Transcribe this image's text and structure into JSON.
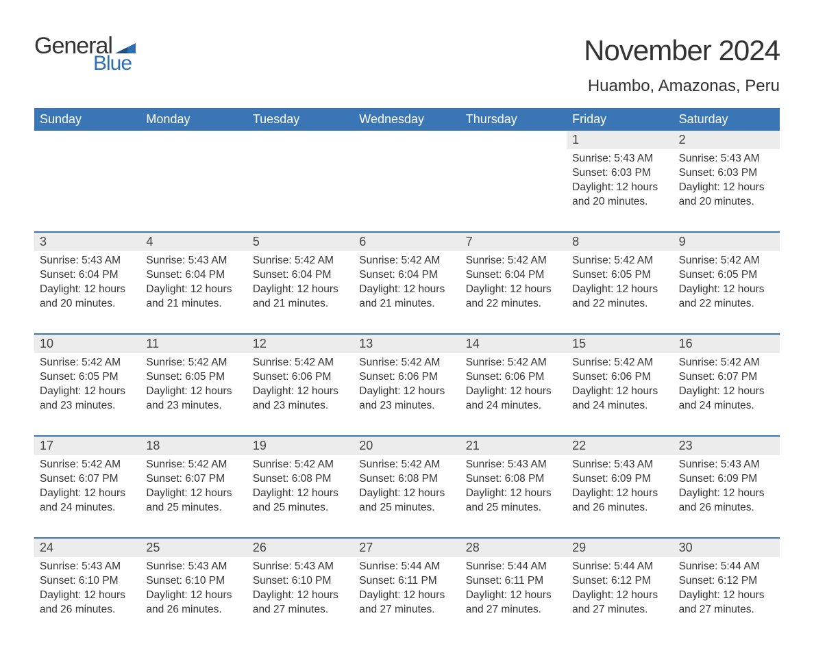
{
  "brand": {
    "part1": "General",
    "part2": "Blue",
    "flag_color": "#2e6fb3",
    "text_color_dark": "#333333"
  },
  "title": "November 2024",
  "location": "Huambo, Amazonas, Peru",
  "colors": {
    "header_bg": "#3a75b5",
    "header_fg": "#ffffff",
    "daynum_bg": "#ececec",
    "rule": "#3a75b5",
    "body_bg": "#ffffff",
    "text": "#333333"
  },
  "weekdays": [
    "Sunday",
    "Monday",
    "Tuesday",
    "Wednesday",
    "Thursday",
    "Friday",
    "Saturday"
  ],
  "weeks": [
    [
      null,
      null,
      null,
      null,
      null,
      {
        "n": "1",
        "sunrise": "5:43 AM",
        "sunset": "6:03 PM",
        "daylight": "12 hours and 20 minutes."
      },
      {
        "n": "2",
        "sunrise": "5:43 AM",
        "sunset": "6:03 PM",
        "daylight": "12 hours and 20 minutes."
      }
    ],
    [
      {
        "n": "3",
        "sunrise": "5:43 AM",
        "sunset": "6:04 PM",
        "daylight": "12 hours and 20 minutes."
      },
      {
        "n": "4",
        "sunrise": "5:43 AM",
        "sunset": "6:04 PM",
        "daylight": "12 hours and 21 minutes."
      },
      {
        "n": "5",
        "sunrise": "5:42 AM",
        "sunset": "6:04 PM",
        "daylight": "12 hours and 21 minutes."
      },
      {
        "n": "6",
        "sunrise": "5:42 AM",
        "sunset": "6:04 PM",
        "daylight": "12 hours and 21 minutes."
      },
      {
        "n": "7",
        "sunrise": "5:42 AM",
        "sunset": "6:04 PM",
        "daylight": "12 hours and 22 minutes."
      },
      {
        "n": "8",
        "sunrise": "5:42 AM",
        "sunset": "6:05 PM",
        "daylight": "12 hours and 22 minutes."
      },
      {
        "n": "9",
        "sunrise": "5:42 AM",
        "sunset": "6:05 PM",
        "daylight": "12 hours and 22 minutes."
      }
    ],
    [
      {
        "n": "10",
        "sunrise": "5:42 AM",
        "sunset": "6:05 PM",
        "daylight": "12 hours and 23 minutes."
      },
      {
        "n": "11",
        "sunrise": "5:42 AM",
        "sunset": "6:05 PM",
        "daylight": "12 hours and 23 minutes."
      },
      {
        "n": "12",
        "sunrise": "5:42 AM",
        "sunset": "6:06 PM",
        "daylight": "12 hours and 23 minutes."
      },
      {
        "n": "13",
        "sunrise": "5:42 AM",
        "sunset": "6:06 PM",
        "daylight": "12 hours and 23 minutes."
      },
      {
        "n": "14",
        "sunrise": "5:42 AM",
        "sunset": "6:06 PM",
        "daylight": "12 hours and 24 minutes."
      },
      {
        "n": "15",
        "sunrise": "5:42 AM",
        "sunset": "6:06 PM",
        "daylight": "12 hours and 24 minutes."
      },
      {
        "n": "16",
        "sunrise": "5:42 AM",
        "sunset": "6:07 PM",
        "daylight": "12 hours and 24 minutes."
      }
    ],
    [
      {
        "n": "17",
        "sunrise": "5:42 AM",
        "sunset": "6:07 PM",
        "daylight": "12 hours and 24 minutes."
      },
      {
        "n": "18",
        "sunrise": "5:42 AM",
        "sunset": "6:07 PM",
        "daylight": "12 hours and 25 minutes."
      },
      {
        "n": "19",
        "sunrise": "5:42 AM",
        "sunset": "6:08 PM",
        "daylight": "12 hours and 25 minutes."
      },
      {
        "n": "20",
        "sunrise": "5:42 AM",
        "sunset": "6:08 PM",
        "daylight": "12 hours and 25 minutes."
      },
      {
        "n": "21",
        "sunrise": "5:43 AM",
        "sunset": "6:08 PM",
        "daylight": "12 hours and 25 minutes."
      },
      {
        "n": "22",
        "sunrise": "5:43 AM",
        "sunset": "6:09 PM",
        "daylight": "12 hours and 26 minutes."
      },
      {
        "n": "23",
        "sunrise": "5:43 AM",
        "sunset": "6:09 PM",
        "daylight": "12 hours and 26 minutes."
      }
    ],
    [
      {
        "n": "24",
        "sunrise": "5:43 AM",
        "sunset": "6:10 PM",
        "daylight": "12 hours and 26 minutes."
      },
      {
        "n": "25",
        "sunrise": "5:43 AM",
        "sunset": "6:10 PM",
        "daylight": "12 hours and 26 minutes."
      },
      {
        "n": "26",
        "sunrise": "5:43 AM",
        "sunset": "6:10 PM",
        "daylight": "12 hours and 27 minutes."
      },
      {
        "n": "27",
        "sunrise": "5:44 AM",
        "sunset": "6:11 PM",
        "daylight": "12 hours and 27 minutes."
      },
      {
        "n": "28",
        "sunrise": "5:44 AM",
        "sunset": "6:11 PM",
        "daylight": "12 hours and 27 minutes."
      },
      {
        "n": "29",
        "sunrise": "5:44 AM",
        "sunset": "6:12 PM",
        "daylight": "12 hours and 27 minutes."
      },
      {
        "n": "30",
        "sunrise": "5:44 AM",
        "sunset": "6:12 PM",
        "daylight": "12 hours and 27 minutes."
      }
    ]
  ],
  "labels": {
    "sunrise": "Sunrise: ",
    "sunset": "Sunset: ",
    "daylight": "Daylight: "
  }
}
